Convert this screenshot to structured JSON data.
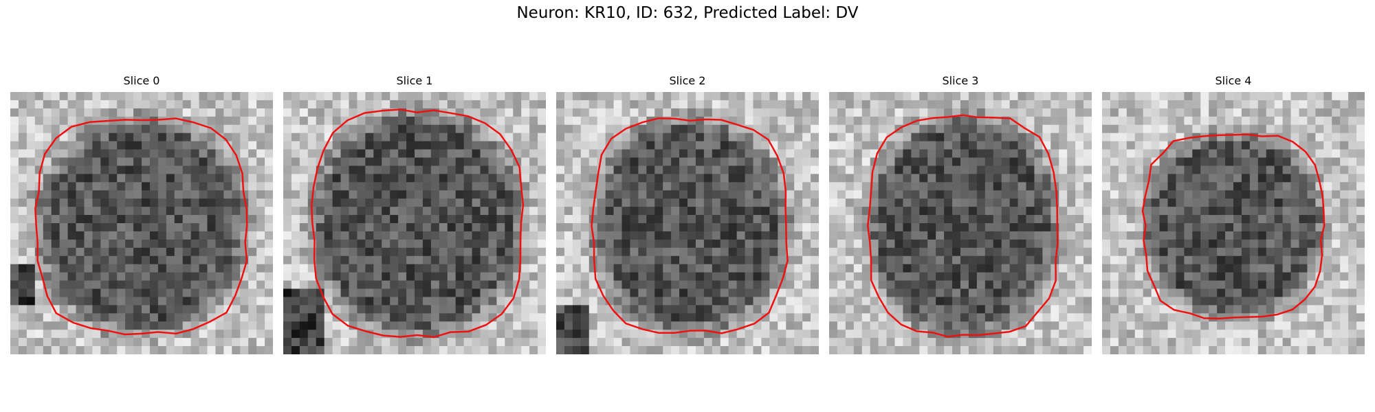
{
  "figure": {
    "title": "Neuron: KR10, ID: 632, Predicted Label: DV"
  },
  "panels": [
    {
      "title": "Slice 0"
    },
    {
      "title": "Slice 1"
    },
    {
      "title": "Slice 2"
    },
    {
      "title": "Slice 3"
    },
    {
      "title": "Slice 4"
    }
  ],
  "colors": {
    "contour": "#ee1111",
    "colormap": "gray"
  }
}
